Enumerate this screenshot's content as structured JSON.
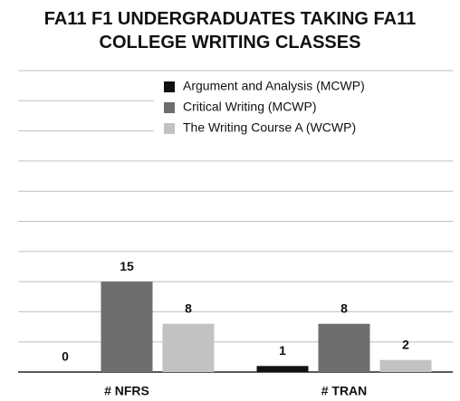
{
  "chart_data": {
    "type": "bar",
    "title": "FA11 F1 UNDERGRADUATES TAKING FA11 COLLEGE WRITING CLASSES",
    "categories": [
      "# NFRS",
      "# TRAN"
    ],
    "series": [
      {
        "name": "Argument and Analysis (MCWP)",
        "color": "#111111",
        "values": [
          0,
          1
        ]
      },
      {
        "name": "Critical Writing (MCWP)",
        "color": "#6e6e6e",
        "values": [
          15,
          8
        ]
      },
      {
        "name": "The Writing Course A (WCWP)",
        "color": "#c2c2c2",
        "values": [
          8,
          2
        ]
      }
    ],
    "ylim": [
      0,
      50
    ],
    "yticks": [
      0,
      5,
      10,
      15,
      20,
      25,
      30,
      35,
      40,
      45,
      50
    ],
    "grid": true,
    "legend": "top-right"
  }
}
